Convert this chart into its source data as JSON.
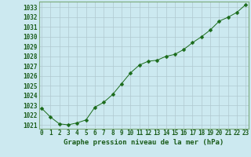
{
  "x": [
    0,
    1,
    2,
    3,
    4,
    5,
    6,
    7,
    8,
    9,
    10,
    11,
    12,
    13,
    14,
    15,
    16,
    17,
    18,
    19,
    20,
    21,
    22,
    23
  ],
  "y": [
    1022.7,
    1021.8,
    1021.1,
    1021.0,
    1021.2,
    1021.5,
    1022.8,
    1023.3,
    1024.1,
    1025.2,
    1026.3,
    1027.1,
    1027.5,
    1027.6,
    1028.0,
    1028.2,
    1028.7,
    1029.4,
    1030.0,
    1030.7,
    1031.6,
    1032.0,
    1032.5,
    1033.3
  ],
  "ylim_min": 1020.6,
  "ylim_max": 1033.6,
  "xlim_min": -0.3,
  "xlim_max": 23.3,
  "yticks": [
    1021,
    1022,
    1023,
    1024,
    1025,
    1026,
    1027,
    1028,
    1029,
    1030,
    1031,
    1032,
    1033
  ],
  "xticks": [
    0,
    1,
    2,
    3,
    4,
    5,
    6,
    7,
    8,
    9,
    10,
    11,
    12,
    13,
    14,
    15,
    16,
    17,
    18,
    19,
    20,
    21,
    22,
    23
  ],
  "line_color": "#1a6b1a",
  "marker_size": 2.5,
  "bg_color": "#cce9f0",
  "grid_color": "#b0c8d0",
  "xlabel": "Graphe pression niveau de la mer (hPa)",
  "xlabel_color": "#1a5c1a",
  "tick_label_color": "#1a5c1a",
  "xlabel_fontsize": 6.5,
  "tick_fontsize": 5.5,
  "spine_color": "#7aaa7a"
}
